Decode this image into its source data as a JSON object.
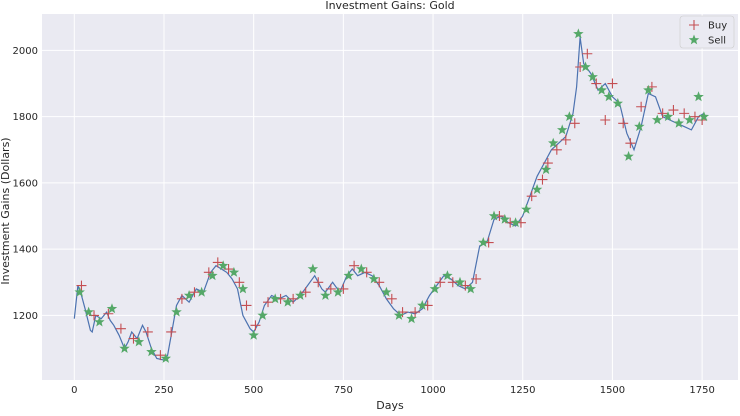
{
  "chart_data": {
    "type": "line",
    "title": "Investment Gains:  Gold",
    "xlabel": "Days",
    "ylabel": "Investment Gains (Dollars)",
    "xlim": [
      -90,
      1850
    ],
    "ylim": [
      1005,
      2110
    ],
    "x_ticks": [
      0,
      250,
      500,
      750,
      1000,
      1250,
      1500,
      1750
    ],
    "y_ticks": [
      1200,
      1400,
      1600,
      1800,
      2000
    ],
    "grid": true,
    "legend_position": "top-right",
    "colors": {
      "background": "#eaeaf2",
      "grid": "#ffffff",
      "price_line": "#4c72b0",
      "buy": "#c44e52",
      "sell": "#55a868"
    },
    "legend": [
      {
        "key": "buy",
        "label": "Buy",
        "marker": "plus"
      },
      {
        "key": "sell",
        "label": "Sell",
        "marker": "star"
      }
    ],
    "price_series": {
      "x": [
        0,
        10,
        20,
        30,
        45,
        50,
        60,
        75,
        90,
        100,
        110,
        125,
        140,
        150,
        160,
        175,
        190,
        200,
        215,
        230,
        250,
        260,
        270,
        285,
        300,
        320,
        340,
        360,
        380,
        395,
        410,
        425,
        440,
        455,
        470,
        490,
        500,
        515,
        530,
        550,
        570,
        590,
        610,
        630,
        650,
        670,
        690,
        700,
        720,
        740,
        760,
        775,
        790,
        810,
        830,
        850,
        870,
        890,
        910,
        930,
        950,
        970,
        990,
        1010,
        1030,
        1050,
        1070,
        1090,
        1110,
        1130,
        1150,
        1170,
        1190,
        1210,
        1230,
        1250,
        1270,
        1290,
        1310,
        1330,
        1350,
        1370,
        1390,
        1400,
        1410,
        1420,
        1440,
        1460,
        1480,
        1500,
        1520,
        1540,
        1560,
        1580,
        1600,
        1620,
        1640,
        1660,
        1680,
        1700,
        1720,
        1740,
        1755
      ],
      "y": [
        1190,
        1290,
        1260,
        1220,
        1155,
        1150,
        1200,
        1190,
        1210,
        1185,
        1170,
        1140,
        1100,
        1120,
        1150,
        1130,
        1170,
        1150,
        1100,
        1070,
        1065,
        1080,
        1140,
        1230,
        1260,
        1240,
        1280,
        1270,
        1330,
        1350,
        1340,
        1330,
        1310,
        1280,
        1200,
        1160,
        1150,
        1180,
        1230,
        1260,
        1250,
        1260,
        1240,
        1260,
        1290,
        1320,
        1280,
        1270,
        1300,
        1270,
        1320,
        1340,
        1320,
        1330,
        1320,
        1290,
        1250,
        1220,
        1200,
        1210,
        1205,
        1220,
        1260,
        1290,
        1320,
        1310,
        1290,
        1280,
        1300,
        1410,
        1420,
        1490,
        1500,
        1480,
        1470,
        1500,
        1560,
        1620,
        1660,
        1700,
        1720,
        1740,
        1810,
        1890,
        2040,
        1960,
        1930,
        1880,
        1900,
        1860,
        1840,
        1750,
        1700,
        1770,
        1870,
        1860,
        1800,
        1790,
        1780,
        1770,
        1760,
        1800,
        1810
      ]
    },
    "buy_series": {
      "x": [
        20,
        55,
        95,
        130,
        165,
        205,
        240,
        270,
        300,
        335,
        375,
        400,
        430,
        460,
        480,
        505,
        540,
        575,
        610,
        645,
        680,
        715,
        750,
        780,
        815,
        850,
        885,
        915,
        950,
        985,
        1020,
        1055,
        1090,
        1120,
        1155,
        1185,
        1215,
        1245,
        1275,
        1305,
        1320,
        1345,
        1370,
        1395,
        1410,
        1430,
        1455,
        1480,
        1500,
        1530,
        1550,
        1580,
        1610,
        1640,
        1670,
        1700,
        1730,
        1750
      ],
      "y": [
        1290,
        1200,
        1205,
        1160,
        1130,
        1150,
        1080,
        1150,
        1250,
        1270,
        1330,
        1360,
        1340,
        1300,
        1230,
        1170,
        1240,
        1250,
        1250,
        1270,
        1300,
        1280,
        1280,
        1350,
        1330,
        1300,
        1250,
        1210,
        1210,
        1230,
        1300,
        1300,
        1290,
        1310,
        1420,
        1500,
        1480,
        1480,
        1560,
        1610,
        1660,
        1700,
        1730,
        1780,
        1950,
        1990,
        1900,
        1790,
        1900,
        1780,
        1720,
        1830,
        1890,
        1810,
        1820,
        1810,
        1800,
        1790
      ]
    },
    "sell_series": {
      "x": [
        15,
        40,
        70,
        105,
        140,
        180,
        215,
        255,
        285,
        320,
        355,
        385,
        415,
        445,
        470,
        500,
        525,
        560,
        595,
        630,
        665,
        700,
        735,
        765,
        800,
        835,
        870,
        905,
        940,
        970,
        1005,
        1040,
        1075,
        1105,
        1140,
        1170,
        1200,
        1230,
        1260,
        1290,
        1315,
        1335,
        1360,
        1380,
        1405,
        1425,
        1445,
        1470,
        1490,
        1515,
        1545,
        1575,
        1600,
        1625,
        1655,
        1685,
        1715,
        1740,
        1755
      ],
      "y": [
        1270,
        1210,
        1180,
        1220,
        1100,
        1120,
        1090,
        1070,
        1210,
        1260,
        1270,
        1320,
        1350,
        1330,
        1280,
        1140,
        1200,
        1250,
        1240,
        1260,
        1340,
        1260,
        1270,
        1320,
        1340,
        1310,
        1270,
        1200,
        1190,
        1230,
        1280,
        1320,
        1300,
        1280,
        1420,
        1500,
        1490,
        1480,
        1520,
        1580,
        1640,
        1720,
        1760,
        1800,
        2050,
        1950,
        1920,
        1880,
        1860,
        1840,
        1680,
        1770,
        1880,
        1790,
        1800,
        1780,
        1790,
        1860,
        1800
      ]
    }
  }
}
